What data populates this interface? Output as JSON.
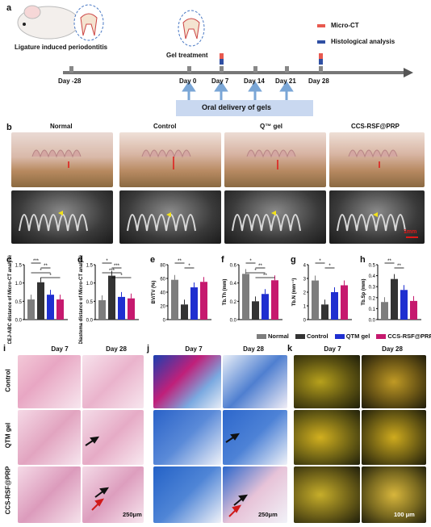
{
  "panels": {
    "a": "a",
    "b": "b",
    "c": "c",
    "d": "d",
    "e": "e",
    "f": "f",
    "g": "g",
    "h": "h",
    "i": "i",
    "j": "j",
    "k": "k"
  },
  "timeline": {
    "ligature_label": "Ligature induced periodontitis",
    "gel_label": "Gel treatment",
    "legend_microct": "Micro-CT",
    "legend_histo": "Histological analysis",
    "days": [
      "Day -28",
      "Day 0",
      "Day 7",
      "Day 14",
      "Day 21",
      "Day 28"
    ],
    "oral_delivery": "Oral delivery of gels",
    "colors": {
      "microct": "#e8594f",
      "histo": "#2f4fa3",
      "arrow": "#7aa6d6",
      "band": "#c9d8f0"
    }
  },
  "microct": {
    "columns": [
      "Normal",
      "Control",
      "Q™ gel",
      "CCS-RSF@PRP"
    ],
    "scale": "1mm"
  },
  "charts": {
    "series": [
      "Normal",
      "Control",
      "Q™ gel",
      "CCS-RSF@PRP"
    ],
    "colors": [
      "#7d7d7d",
      "#333333",
      "#1f2fd0",
      "#c6196e"
    ],
    "legend_labels": [
      "Normal",
      "Control",
      "QTM gel",
      "CCS-RSF@PRP"
    ]
  },
  "chart_data": [
    {
      "type": "bar",
      "panel": "c",
      "ylabel": "CEJ-ABC distance of Micro-CT analysis (mm)",
      "ylim": [
        0,
        1.5
      ],
      "yticks": [
        "0.0",
        "0.5",
        "1.0",
        "1.5"
      ],
      "categories": [
        "Normal",
        "Control",
        "Q™ gel",
        "CCS-RSF@PRP"
      ],
      "values": [
        0.55,
        1.02,
        0.68,
        0.55
      ],
      "sig": [
        "***",
        "**",
        "*",
        "*"
      ]
    },
    {
      "type": "bar",
      "panel": "d",
      "ylabel": "Diastema distance of Micro-CT analysis (mm)",
      "ylim": [
        0,
        1.5
      ],
      "yticks": [
        "0.0",
        "0.5",
        "1.0",
        "1.5"
      ],
      "categories": [
        "Normal",
        "Control",
        "Q™ gel",
        "CCS-RSF@PRP"
      ],
      "values": [
        0.53,
        1.2,
        0.62,
        0.58
      ],
      "sig": [
        "*",
        "***",
        "***",
        "*"
      ]
    },
    {
      "type": "bar",
      "panel": "e",
      "ylabel": "BV/TV (%)",
      "ylim": [
        0,
        80
      ],
      "yticks": [
        "0",
        "20",
        "40",
        "60",
        "80"
      ],
      "categories": [
        "Normal",
        "Control",
        "Q™ gel",
        "CCS-RSF@PRP"
      ],
      "values": [
        58,
        22,
        47,
        55
      ],
      "sig": [
        "**",
        "*"
      ]
    },
    {
      "type": "bar",
      "panel": "f",
      "ylabel": "Tb.Th (mm)",
      "ylim": [
        0,
        0.6
      ],
      "yticks": [
        "0.0",
        "0.2",
        "0.4",
        "0.6"
      ],
      "categories": [
        "Normal",
        "Control",
        "Q™ gel",
        "CCS-RSF@PRP"
      ],
      "values": [
        0.5,
        0.2,
        0.28,
        0.43
      ],
      "sig": [
        "*",
        "**",
        "*",
        "**"
      ]
    },
    {
      "type": "bar",
      "panel": "g",
      "ylabel": "Tb.N (mm⁻¹)",
      "ylim": [
        0,
        4
      ],
      "yticks": [
        "0",
        "1",
        "2",
        "3",
        "4"
      ],
      "categories": [
        "Normal",
        "Control",
        "Q™ gel",
        "CCS-RSF@PRP"
      ],
      "values": [
        2.85,
        1.1,
        2.0,
        2.5
      ],
      "sig": [
        "*",
        "*"
      ]
    },
    {
      "type": "bar",
      "panel": "h",
      "ylabel": "Tb.Sp (mm)",
      "ylim": [
        0,
        0.5
      ],
      "yticks": [
        "0.0",
        "0.1",
        "0.2",
        "0.3",
        "0.4",
        "0.5"
      ],
      "categories": [
        "Normal",
        "Control",
        "Q™ gel",
        "CCS-RSF@PRP"
      ],
      "values": [
        0.16,
        0.37,
        0.27,
        0.17
      ],
      "sig": [
        "**",
        "**"
      ]
    }
  ],
  "histology": {
    "cols_i": [
      "Day 7",
      "Day 28"
    ],
    "cols_j": [
      "Day 7",
      "Day 28"
    ],
    "cols_k": [
      "Day 7",
      "Day 28"
    ],
    "rows": [
      "Control",
      "QTM gel",
      "CCS-RSF@PRP"
    ],
    "scale_i": "250μm",
    "scale_j": "250μm",
    "scale_k": "100 μm"
  }
}
